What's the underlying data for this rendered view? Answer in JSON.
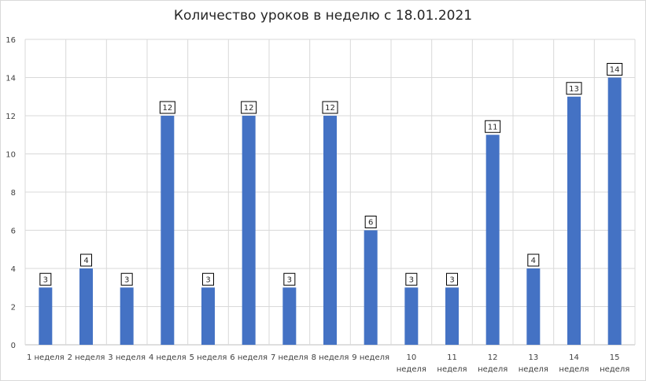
{
  "chart_data": {
    "type": "bar",
    "title": "Количество уроков в неделю с 18.01.2021",
    "xlabel": "",
    "ylabel": "",
    "ylim": [
      0,
      16
    ],
    "y_ticks": [
      0,
      2,
      4,
      6,
      8,
      10,
      12,
      14,
      16
    ],
    "grid": true,
    "legend": "none",
    "bar_color": "#4472C4",
    "categories": [
      [
        "1 неделя"
      ],
      [
        "2 неделя"
      ],
      [
        "3 неделя"
      ],
      [
        "4 неделя"
      ],
      [
        "5 неделя"
      ],
      [
        "6 неделя"
      ],
      [
        "7 неделя"
      ],
      [
        "8 неделя"
      ],
      [
        "9 неделя"
      ],
      [
        "10",
        "неделя"
      ],
      [
        "11",
        "неделя"
      ],
      [
        "12",
        "неделя"
      ],
      [
        "13",
        "неделя"
      ],
      [
        "14",
        "неделя"
      ],
      [
        "15",
        "неделя"
      ]
    ],
    "values": [
      3,
      4,
      3,
      12,
      3,
      12,
      3,
      12,
      6,
      3,
      3,
      11,
      4,
      13,
      14
    ]
  }
}
